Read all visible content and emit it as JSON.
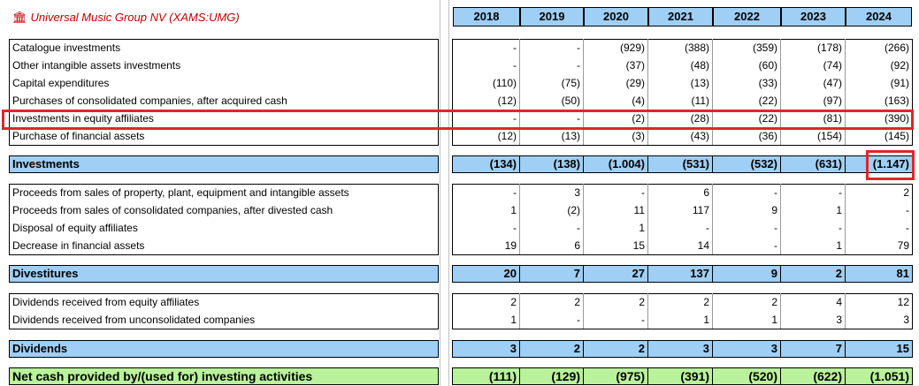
{
  "title": "Universal Music Group NV (XAMS:UMG)",
  "title_icon": "bank-icon",
  "years": [
    "2018",
    "2019",
    "2020",
    "2021",
    "2022",
    "2023",
    "2024"
  ],
  "groups": [
    {
      "rows": [
        {
          "label": "Catalogue investments",
          "values": [
            "-",
            "-",
            "(929)",
            "(388)",
            "(359)",
            "(178)",
            "(266)"
          ]
        },
        {
          "label": "Other intangible assets investments",
          "values": [
            "-",
            "-",
            "(37)",
            "(48)",
            "(60)",
            "(74)",
            "(92)"
          ]
        },
        {
          "label": "Capital expenditures",
          "values": [
            "(110)",
            "(75)",
            "(29)",
            "(13)",
            "(33)",
            "(47)",
            "(91)"
          ]
        },
        {
          "label": "Purchases of consolidated companies, after acquired cash",
          "values": [
            "(12)",
            "(50)",
            "(4)",
            "(11)",
            "(22)",
            "(97)",
            "(163)"
          ]
        },
        {
          "label": "Investments in equity affiliates",
          "values": [
            "-",
            "-",
            "(2)",
            "(28)",
            "(22)",
            "(81)",
            "(390)"
          ]
        },
        {
          "label": "Purchase of financial assets",
          "values": [
            "(12)",
            "(13)",
            "(3)",
            "(43)",
            "(36)",
            "(154)",
            "(145)"
          ]
        }
      ],
      "total": {
        "label": "Investments",
        "values": [
          "(134)",
          "(138)",
          "(1.004)",
          "(531)",
          "(532)",
          "(631)",
          "(1.147)"
        ]
      }
    },
    {
      "rows": [
        {
          "label": "Proceeds from sales of property, plant, equipment and intangible assets",
          "values": [
            "-",
            "3",
            "-",
            "6",
            "-",
            "-",
            "2"
          ]
        },
        {
          "label": "Proceeds from sales of consolidated companies, after divested cash",
          "values": [
            "1",
            "(2)",
            "11",
            "117",
            "9",
            "1",
            "-"
          ]
        },
        {
          "label": "Disposal of equity affiliates",
          "values": [
            "-",
            "-",
            "1",
            "-",
            "-",
            "-",
            "-"
          ]
        },
        {
          "label": "Decrease in financial assets",
          "values": [
            "19",
            "6",
            "15",
            "14",
            "-",
            "1",
            "79"
          ]
        }
      ],
      "total": {
        "label": "Divestitures",
        "values": [
          "20",
          "7",
          "27",
          "137",
          "9",
          "2",
          "81"
        ]
      }
    },
    {
      "rows": [
        {
          "label": "Dividends received from equity affiliates",
          "values": [
            "2",
            "2",
            "2",
            "2",
            "2",
            "4",
            "12"
          ]
        },
        {
          "label": "Dividends received from unconsolidated companies",
          "values": [
            "1",
            "-",
            "-",
            "1",
            "1",
            "3",
            "3"
          ]
        }
      ],
      "total": {
        "label": "Dividends",
        "values": [
          "3",
          "2",
          "2",
          "3",
          "3",
          "7",
          "15"
        ]
      }
    }
  ],
  "net": {
    "label": "Net cash provided by/(used for) investing activities",
    "values": [
      "(111)",
      "(129)",
      "(975)",
      "(391)",
      "(520)",
      "(622)",
      "(1.051)"
    ]
  },
  "colors": {
    "header_blue": "#9fcff5",
    "net_green": "#b9f29b",
    "highlight_red": "#e0262a",
    "title_red": "#c00000"
  }
}
